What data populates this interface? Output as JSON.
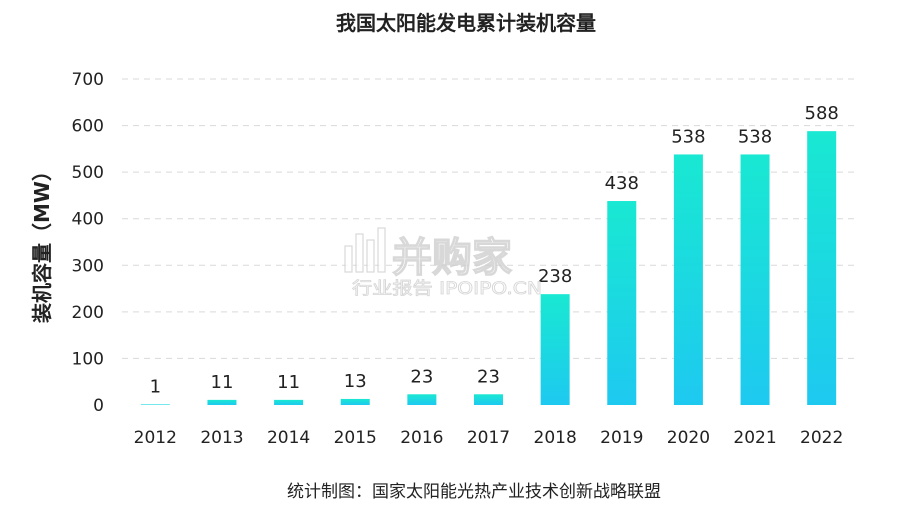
{
  "chart_data": {
    "type": "bar",
    "title": "我国太阳能发电累计装机容量",
    "ylabel": "装机容量（MW）",
    "xlabel": "",
    "categories": [
      "2012",
      "2013",
      "2014",
      "2015",
      "2016",
      "2017",
      "2018",
      "2019",
      "2020",
      "2021",
      "2022"
    ],
    "values": [
      1,
      11,
      11,
      13,
      23,
      23,
      238,
      438,
      538,
      538,
      588
    ],
    "data_labels": [
      "1",
      "11",
      "11",
      "13",
      "23",
      "23",
      "238",
      "438",
      "538",
      "538",
      "588"
    ],
    "ylim": [
      0,
      700
    ],
    "yticks": [
      0,
      100,
      200,
      300,
      400,
      500,
      600,
      700
    ],
    "ytick_labels": [
      "0",
      "100",
      "200",
      "300",
      "400",
      "500",
      "600",
      "700"
    ],
    "grid": true,
    "bar_gradient": [
      "#19e8d2",
      "#1ec9f0"
    ]
  },
  "source_note": "统计制图：国家太阳能光热产业技术创新战略联盟",
  "watermark": {
    "main": "并购家",
    "sub": "行业报告 IPOIPO.CN"
  }
}
